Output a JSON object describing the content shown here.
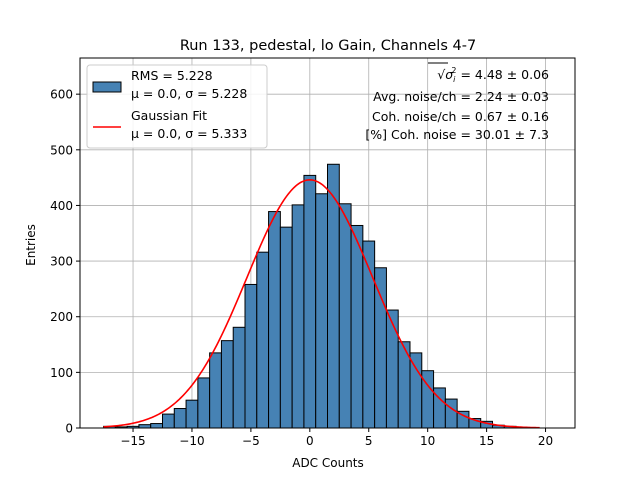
{
  "chart_data": {
    "type": "bar",
    "title": "Run 133, pedestal, lo Gain, Channels 4-7",
    "xlabel": "ADC Counts",
    "ylabel": "Entries",
    "xlim": [
      -19.5,
      22.5
    ],
    "ylim": [
      0,
      665
    ],
    "xticks": [
      "−15",
      "−10",
      "−5",
      "0",
      "5",
      "10",
      "15",
      "20"
    ],
    "xtick_values": [
      -15,
      -10,
      -5,
      0,
      5,
      10,
      15,
      20
    ],
    "yticks": [
      "0",
      "100",
      "200",
      "300",
      "400",
      "500",
      "600"
    ],
    "ytick_values": [
      0,
      100,
      200,
      300,
      400,
      500,
      600
    ],
    "grid": true,
    "bin_width": 1.0,
    "histogram": {
      "bin_left": [
        -17.5,
        -16.5,
        -15.5,
        -14.5,
        -13.5,
        -12.5,
        -11.5,
        -10.5,
        -9.5,
        -8.5,
        -7.5,
        -6.5,
        -5.5,
        -4.5,
        -3.5,
        -2.5,
        -1.5,
        -0.5,
        0.5,
        1.5,
        2.5,
        3.5,
        4.5,
        5.5,
        6.5,
        7.5,
        8.5,
        9.5,
        10.5,
        11.5,
        12.5,
        13.5,
        14.5,
        15.5,
        16.5,
        17.5
      ],
      "counts": [
        3,
        2,
        3,
        6,
        8,
        25,
        35,
        50,
        90,
        135,
        157,
        181,
        258,
        316,
        389,
        361,
        401,
        454,
        421,
        474,
        403,
        364,
        336,
        288,
        212,
        155,
        135,
        103,
        72,
        52,
        30,
        17,
        12,
        5,
        3,
        1
      ],
      "fill": "#4682b4",
      "edge": "#000000"
    },
    "fit": {
      "mu": 0.0,
      "sigma": 5.333,
      "amplitude": 446,
      "x_range": [
        -17.5,
        19.5
      ],
      "color": "#ff0000"
    },
    "legend": {
      "placement": "top-left",
      "entries": [
        {
          "line1": "RMS = 5.228",
          "line2": "μ = 0.0, σ = 5.228",
          "marker": "patch"
        },
        {
          "line1": "Gaussian Fit",
          "line2": "μ = 0.0, σ = 5.333",
          "marker": "line"
        }
      ]
    },
    "annotations": [
      {
        "prefix": "√",
        "radicand_base": "σ",
        "radicand_sub": "i",
        "radicand_sup": "2",
        "text": " = 4.48 ± 0.06"
      },
      {
        "text": "Avg. noise/ch = 2.24 ± 0.03"
      },
      {
        "text": "Coh. noise/ch = 0.67 ± 0.16"
      },
      {
        "text": "[%] Coh. noise = 30.01 ± 7.3"
      }
    ]
  }
}
